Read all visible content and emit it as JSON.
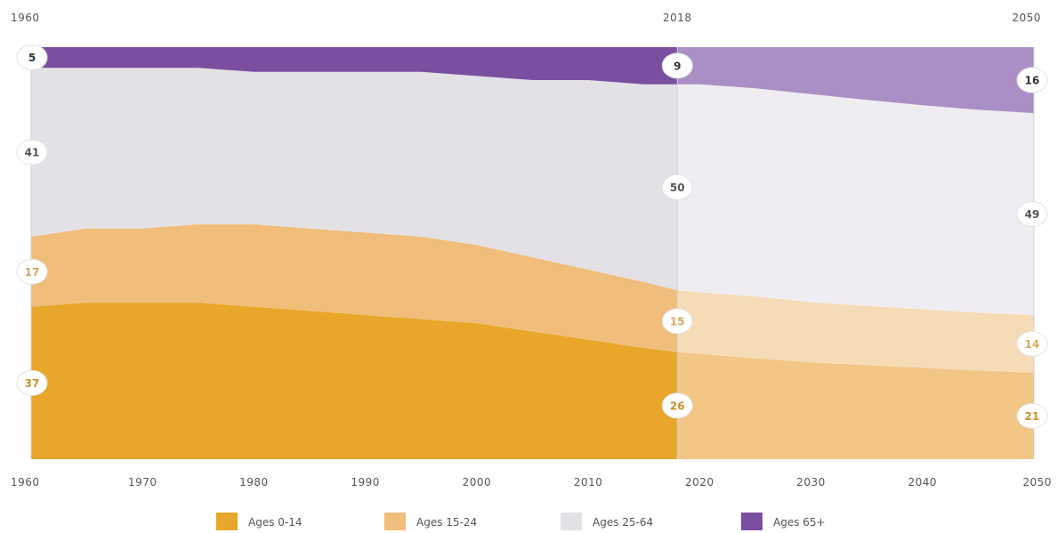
{
  "chart_data": {
    "type": "area",
    "stacked": true,
    "normalized_percent": true,
    "x_range": [
      1960,
      2050
    ],
    "split_year": 2018,
    "x_ticks": [
      1960,
      1970,
      1980,
      1990,
      2000,
      2010,
      2020,
      2030,
      2040,
      2050
    ],
    "top_year_labels": [
      1960,
      2018,
      2050
    ],
    "colors": {
      "Ages 0-14": "#e8a72a",
      "Ages 15-24": "#f0be7a",
      "Ages 25-64": "#e3e1e5",
      "Ages 65+": "#7b4fa0"
    },
    "projected_colors": {
      "Ages 0-14": "#f2c685",
      "Ages 15-24": "#f6dcb6",
      "Ages 25-64": "#efedf1",
      "Ages 65+": "#a98fc6"
    },
    "x": [
      1960,
      1965,
      1970,
      1975,
      1980,
      1985,
      1990,
      1995,
      2000,
      2005,
      2010,
      2015,
      2018,
      2020,
      2025,
      2030,
      2035,
      2040,
      2045,
      2050
    ],
    "series": [
      {
        "name": "Ages 0-14",
        "values": [
          37,
          38,
          38,
          38,
          37,
          36,
          35,
          34,
          33,
          31,
          29,
          27,
          26,
          25.5,
          24.5,
          23.5,
          22.8,
          22.2,
          21.5,
          21
        ]
      },
      {
        "name": "Ages 15-24",
        "values": [
          17,
          18,
          18,
          19,
          20,
          20,
          20,
          20,
          19,
          18,
          17,
          16,
          15,
          15,
          15,
          14.6,
          14.4,
          14.2,
          14.1,
          14
        ]
      },
      {
        "name": "Ages 25-64",
        "values": [
          41,
          39,
          39,
          38,
          37,
          38,
          39,
          40,
          41,
          43,
          46,
          48,
          50,
          50.5,
          50.5,
          50.5,
          50,
          49.5,
          49.2,
          49
        ]
      },
      {
        "name": "Ages 65+",
        "values": [
          5,
          5,
          5,
          5,
          6,
          6,
          6,
          6,
          7,
          8,
          8,
          9,
          9,
          9,
          10,
          11.4,
          12.8,
          14.1,
          15.2,
          16
        ]
      }
    ],
    "annotations": {
      "1960": [
        37,
        17,
        41,
        5
      ],
      "2018": [
        26,
        15,
        50,
        9
      ],
      "2050": [
        21,
        14,
        49,
        16
      ]
    },
    "legend": [
      "Ages 0-14",
      "Ages 15-24",
      "Ages 25-64",
      "Ages 65+"
    ],
    "legend_position": "bottom-center"
  }
}
